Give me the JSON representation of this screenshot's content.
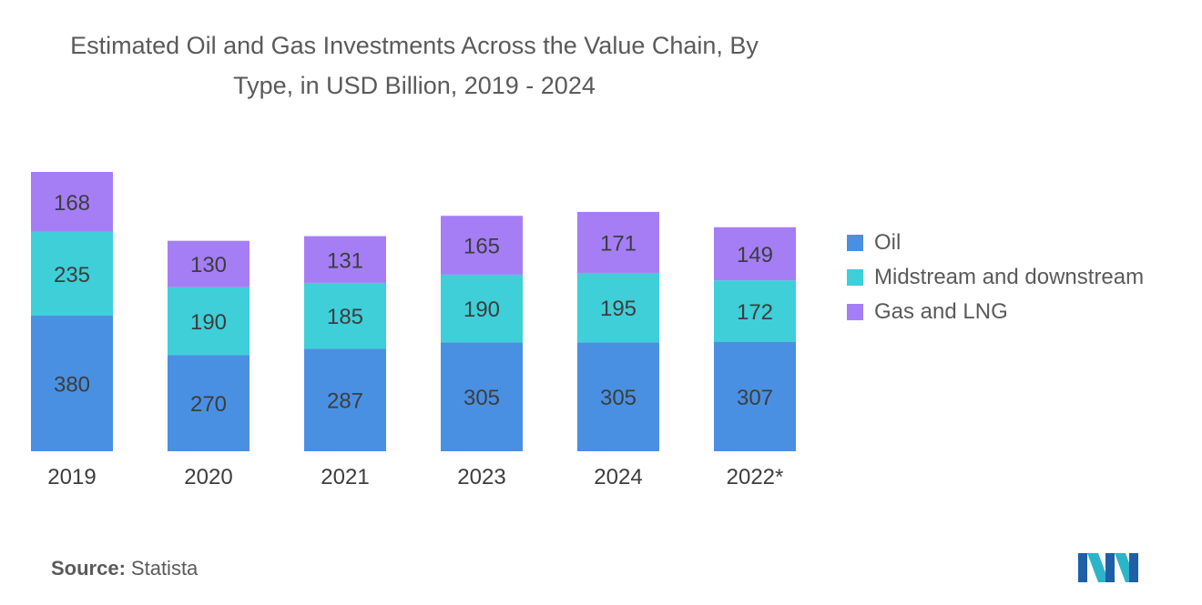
{
  "chart_data": {
    "type": "bar",
    "stacked": true,
    "title_line1": "Estimated Oil and Gas Investments Across the Value Chain, By",
    "title_line2": "Type, in USD Billion, 2019 - 2024",
    "categories": [
      "2019",
      "2020",
      "2021",
      "2023",
      "2024",
      "2022*"
    ],
    "series": [
      {
        "name": "Oil",
        "color": "#4a90e2",
        "values": [
          380,
          270,
          287,
          305,
          305,
          307
        ]
      },
      {
        "name": "Midstream and downstream",
        "color": "#3ecfd9",
        "values": [
          235,
          190,
          185,
          190,
          195,
          172
        ]
      },
      {
        "name": "Gas and LNG",
        "color": "#a57ef6",
        "values": [
          168,
          130,
          131,
          165,
          171,
          149
        ]
      }
    ],
    "ylim": [
      0,
      783
    ],
    "grid": false,
    "legend_position": "right"
  },
  "source": {
    "label": "Source:",
    "value": "Statista"
  },
  "logo": {
    "name": "mordor-intelligence-logo",
    "colors": [
      "#1f5fa8",
      "#2bb5c8"
    ]
  }
}
